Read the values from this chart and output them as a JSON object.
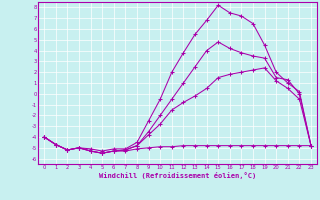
{
  "xlabel": "Windchill (Refroidissement éolien,°C)",
  "ylabel": "",
  "xlim": [
    -0.5,
    23.5
  ],
  "ylim": [
    -6.5,
    8.5
  ],
  "yticks": [
    -6,
    -5,
    -4,
    -3,
    -2,
    -1,
    0,
    1,
    2,
    3,
    4,
    5,
    6,
    7,
    8
  ],
  "xticks": [
    0,
    1,
    2,
    3,
    4,
    5,
    6,
    7,
    8,
    9,
    10,
    11,
    12,
    13,
    14,
    15,
    16,
    17,
    18,
    19,
    20,
    21,
    22,
    23
  ],
  "background_color": "#c8f0f0",
  "line_color": "#aa00aa",
  "grid_color": "#b0dede",
  "lines": [
    [
      -4.0,
      -4.7,
      -5.2,
      -5.0,
      -5.3,
      -5.5,
      -5.3,
      -5.3,
      -5.1,
      -5.0,
      -4.9,
      -4.9,
      -4.8,
      -4.8,
      -4.8,
      -4.8,
      -4.8,
      -4.8,
      -4.8,
      -4.8,
      -4.8,
      -4.8,
      -4.8,
      -4.8
    ],
    [
      -4.0,
      -4.7,
      -5.2,
      -5.0,
      -5.3,
      -5.5,
      -5.3,
      -5.2,
      -4.8,
      -3.8,
      -2.8,
      -1.5,
      -0.8,
      -0.2,
      0.5,
      1.5,
      1.8,
      2.0,
      2.2,
      2.4,
      1.2,
      0.5,
      -0.5,
      -4.8
    ],
    [
      -4.0,
      -4.7,
      -5.2,
      -5.0,
      -5.3,
      -5.5,
      -5.3,
      -5.2,
      -4.8,
      -3.5,
      -2.0,
      -0.5,
      1.0,
      2.5,
      4.0,
      4.8,
      4.2,
      3.8,
      3.5,
      3.3,
      1.5,
      1.3,
      0.0,
      -4.8
    ],
    [
      -4.0,
      -4.7,
      -5.2,
      -5.0,
      -5.1,
      -5.3,
      -5.1,
      -5.1,
      -4.5,
      -2.5,
      -0.5,
      2.0,
      3.8,
      5.5,
      6.8,
      8.2,
      7.5,
      7.2,
      6.5,
      4.5,
      2.0,
      1.0,
      0.2,
      -4.8
    ]
  ]
}
